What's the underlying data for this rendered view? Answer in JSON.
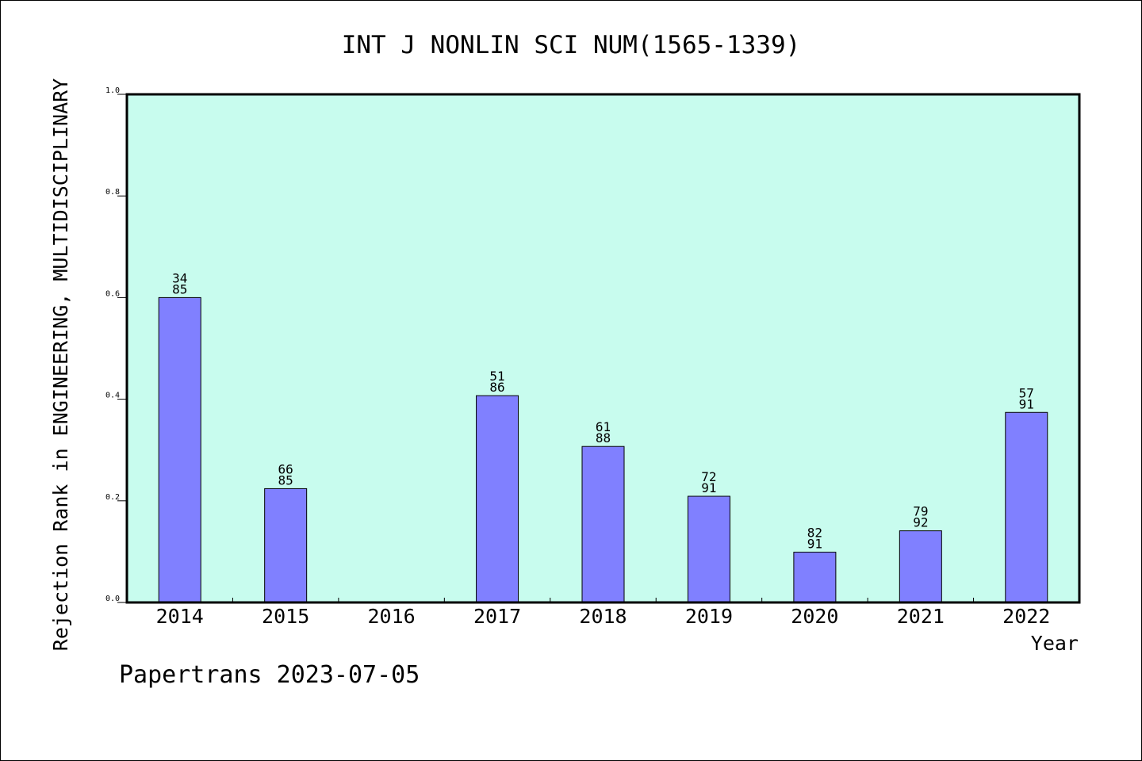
{
  "chart_data": {
    "type": "bar",
    "title": "INT J NONLIN SCI NUM(1565-1339)",
    "xlabel": "Year",
    "ylabel": "Rejection Rank in ENGINEERING, MULTIDISCIPLINARY",
    "categories": [
      "2014",
      "2015",
      "2016",
      "2017",
      "2018",
      "2019",
      "2020",
      "2021",
      "2022"
    ],
    "values": [
      0.6,
      0.224,
      null,
      0.407,
      0.307,
      0.209,
      0.099,
      0.141,
      0.374
    ],
    "bar_labels": [
      [
        "34",
        "85"
      ],
      [
        "66",
        "85"
      ],
      null,
      [
        "51",
        "86"
      ],
      [
        "61",
        "88"
      ],
      [
        "72",
        "91"
      ],
      [
        "82",
        "91"
      ],
      [
        "79",
        "92"
      ],
      [
        "57",
        "91"
      ]
    ],
    "ylim": [
      0,
      1.0
    ],
    "yticks": [
      "0.0",
      "0.2",
      "0.4",
      "0.6",
      "0.8",
      "1.0"
    ],
    "grid": false,
    "colors": {
      "plot_background": "#c8fcee",
      "bar_fill": "#8080ff",
      "bar_stroke": "#000000"
    }
  },
  "footer": {
    "text": "Papertrans 2023-07-05"
  }
}
